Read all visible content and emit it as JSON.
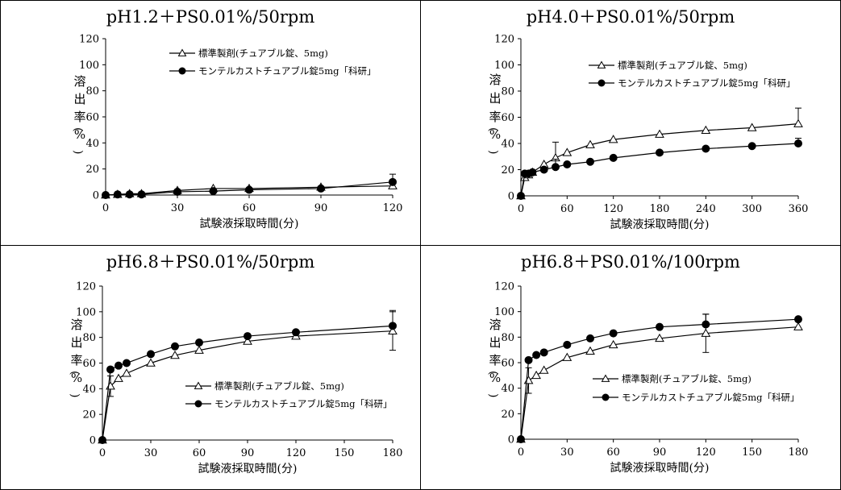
{
  "chart_data": [
    {
      "type": "line",
      "title": "pH1.2＋PS0.01%/50rpm",
      "xlabel": "試験液採取時間(分)",
      "ylabel": "溶出率(%)",
      "xlim": [
        0,
        120
      ],
      "xticks": [
        0,
        30,
        60,
        90,
        120
      ],
      "ylim": [
        0,
        120
      ],
      "yticks": [
        0,
        20,
        40,
        60,
        80,
        100,
        120
      ],
      "legend_position": "top-center",
      "series": [
        {
          "name": "標準製剤(チュアブル錠、5mg)",
          "marker": "open-triangle",
          "x": [
            0,
            5,
            10,
            15,
            30,
            45,
            60,
            90,
            120
          ],
          "y": [
            0,
            0.5,
            1,
            1,
            3.5,
            5,
            5,
            6,
            7
          ],
          "err": [
            0,
            0,
            0,
            0,
            0,
            0,
            0,
            0,
            0
          ]
        },
        {
          "name": "モンテルカストチュアブル錠5mg「科研」",
          "marker": "filled-circle",
          "x": [
            0,
            5,
            10,
            15,
            30,
            45,
            60,
            90,
            120
          ],
          "y": [
            0,
            0.5,
            0.5,
            0.5,
            2.5,
            3,
            4,
            5,
            10
          ],
          "err": [
            0,
            0,
            0,
            0,
            0,
            0,
            0,
            0,
            6
          ]
        }
      ]
    },
    {
      "type": "line",
      "title": "pH4.0＋PS0.01%/50rpm",
      "xlabel": "試験液採取時間(分)",
      "ylabel": "溶出率(%)",
      "xlim": [
        0,
        360
      ],
      "xticks": [
        0,
        60,
        120,
        180,
        240,
        300,
        360
      ],
      "ylim": [
        0,
        120
      ],
      "yticks": [
        0,
        20,
        40,
        60,
        80,
        100,
        120
      ],
      "legend_position": "top-center",
      "series": [
        {
          "name": "標準製剤(チュアブル錠、5mg)",
          "marker": "open-triangle",
          "x": [
            0,
            5,
            10,
            15,
            30,
            45,
            60,
            90,
            120,
            180,
            240,
            300,
            360
          ],
          "y": [
            0,
            14,
            16,
            18,
            24,
            29,
            33,
            39,
            43,
            47,
            50,
            52,
            55
          ],
          "err": [
            0,
            0,
            0,
            0,
            0,
            12,
            0,
            0,
            0,
            0,
            0,
            0,
            12
          ]
        },
        {
          "name": "モンテルカストチュアブル錠5mg「科研」",
          "marker": "filled-circle",
          "x": [
            0,
            5,
            10,
            15,
            30,
            45,
            60,
            90,
            120,
            180,
            240,
            300,
            360
          ],
          "y": [
            0,
            17,
            17,
            18,
            20,
            22,
            24,
            26,
            29,
            33,
            36,
            38,
            40
          ],
          "err": [
            0,
            0,
            0,
            0,
            0,
            6,
            0,
            0,
            0,
            0,
            0,
            0,
            4
          ]
        }
      ]
    },
    {
      "type": "line",
      "title": "pH6.8＋PS0.01%/50rpm",
      "xlabel": "試験液採取時間(分)",
      "ylabel": "溶出率(%)",
      "xlim": [
        0,
        180
      ],
      "xticks": [
        0,
        30,
        60,
        90,
        120,
        150,
        180
      ],
      "ylim": [
        0,
        120
      ],
      "yticks": [
        0,
        20,
        40,
        60,
        80,
        100,
        120
      ],
      "legend_position": "bottom-center",
      "series": [
        {
          "name": "標準製剤(チュアブル錠、5mg)",
          "marker": "open-triangle",
          "x": [
            0,
            5,
            10,
            15,
            30,
            45,
            60,
            90,
            120,
            180
          ],
          "y": [
            0,
            42,
            48,
            52,
            60,
            66,
            70,
            77,
            81,
            85
          ],
          "err": [
            0,
            8,
            0,
            0,
            0,
            0,
            0,
            0,
            0,
            15
          ]
        },
        {
          "name": "モンテルカストチュアブル錠5mg「科研」",
          "marker": "filled-circle",
          "x": [
            0,
            5,
            10,
            15,
            30,
            45,
            60,
            90,
            120,
            180
          ],
          "y": [
            0,
            55,
            58,
            60,
            67,
            73,
            76,
            81,
            84,
            89
          ],
          "err": [
            0,
            0,
            0,
            0,
            0,
            0,
            0,
            0,
            0,
            12
          ]
        }
      ]
    },
    {
      "type": "line",
      "title": "pH6.8＋PS0.01%/100rpm",
      "xlabel": "試験液採取時間(分)",
      "ylabel": "溶出率(%)",
      "xlim": [
        0,
        180
      ],
      "xticks": [
        0,
        30,
        60,
        90,
        120,
        150,
        180
      ],
      "ylim": [
        0,
        120
      ],
      "yticks": [
        0,
        20,
        40,
        60,
        80,
        100,
        120
      ],
      "legend_position": "bottom-center",
      "series": [
        {
          "name": "標準製剤(チュアブル錠、5mg)",
          "marker": "open-triangle",
          "x": [
            0,
            5,
            10,
            15,
            30,
            45,
            60,
            90,
            120,
            180
          ],
          "y": [
            0,
            46,
            50,
            54,
            64,
            69,
            74,
            79,
            83,
            88
          ],
          "err": [
            0,
            10,
            0,
            0,
            0,
            0,
            0,
            0,
            15,
            0
          ]
        },
        {
          "name": "モンテルカストチュアブル錠5mg「科研」",
          "marker": "filled-circle",
          "x": [
            0,
            5,
            10,
            15,
            30,
            45,
            60,
            90,
            120,
            180
          ],
          "y": [
            0,
            62,
            66,
            68,
            74,
            79,
            83,
            88,
            90,
            94
          ],
          "err": [
            0,
            0,
            0,
            0,
            0,
            0,
            0,
            0,
            8,
            0
          ]
        }
      ]
    }
  ]
}
